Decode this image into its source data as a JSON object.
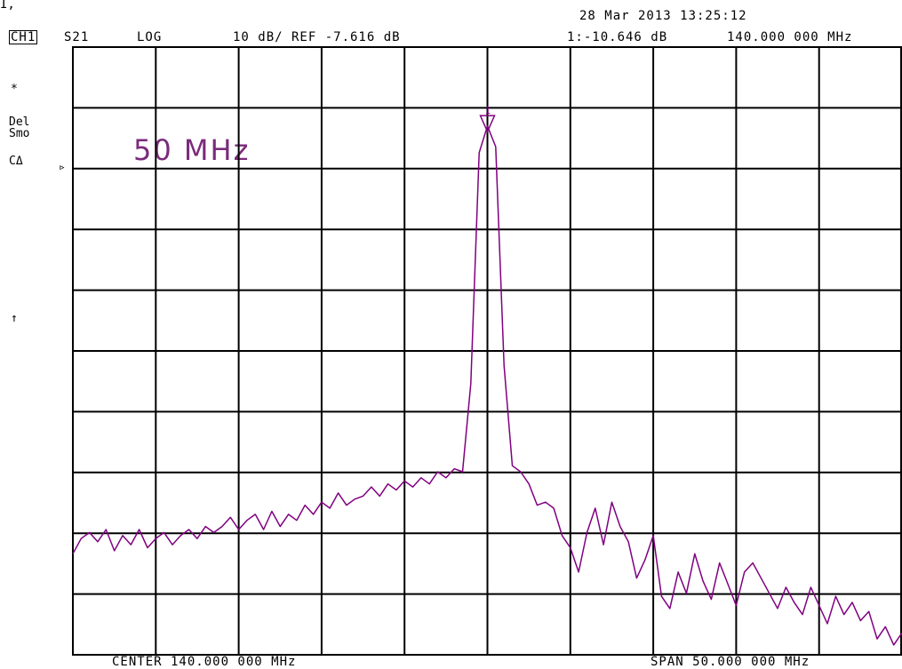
{
  "corner_mark": "I, ",
  "header": {
    "datetime": "28 Mar 2013  13:25:12",
    "channel": "CH1",
    "param": "S21",
    "format": "LOG",
    "scale_ref": "10 dB/ REF -7.616 dB",
    "marker_readout": "1:-10.646 dB",
    "marker_freq": "140.000 000 MHz"
  },
  "side_labels": {
    "star": "*",
    "del": "Del",
    "smo": "Smo",
    "ca": "CΔ",
    "arrow": "↑",
    "ref_marker": "▹"
  },
  "annotation": "50 MHz",
  "footer": {
    "center": "CENTER 140.000 000 MHz",
    "span": "SPAN  50.000 000 MHz"
  },
  "chart_data": {
    "type": "line",
    "x_unit": "MHz",
    "y_unit": "dB",
    "center_mhz": 140.0,
    "span_mhz": 50.0,
    "xlim": [
      115.0,
      165.0
    ],
    "ref_db": -7.616,
    "scale_db_per_div": 10,
    "divisions_x": 10,
    "divisions_y": 10,
    "ylim": [
      -97.616,
      2.384
    ],
    "grid": true,
    "trace_color": "#800080",
    "marker": {
      "label": "1",
      "x": 140.0,
      "y": -10.646
    },
    "series": [
      {
        "x": [
          115.0,
          115.5,
          116.0,
          116.5,
          117.0,
          117.5,
          118.0,
          118.5,
          119.0,
          119.5,
          120.0,
          120.5,
          121.0,
          121.5,
          122.0,
          122.5,
          123.0,
          123.5,
          124.0,
          124.5,
          125.0,
          125.5,
          126.0,
          126.5,
          127.0,
          127.5,
          128.0,
          128.5,
          129.0,
          129.5,
          130.0,
          130.5,
          131.0,
          131.5,
          132.0,
          132.5,
          133.0,
          133.5,
          134.0,
          134.5,
          135.0,
          135.5,
          136.0,
          136.5,
          137.0,
          137.5,
          138.0,
          138.5,
          139.0,
          139.5,
          140.0,
          140.5,
          141.0,
          141.5,
          142.0,
          142.5,
          143.0,
          143.5,
          144.0,
          144.5,
          145.0,
          145.5,
          146.0,
          146.5,
          147.0,
          147.5,
          148.0,
          148.5,
          149.0,
          149.5,
          150.0,
          150.5,
          151.0,
          151.5,
          152.0,
          152.5,
          153.0,
          153.5,
          154.0,
          154.5,
          155.0,
          155.5,
          156.0,
          156.5,
          157.0,
          157.5,
          158.0,
          158.5,
          159.0,
          159.5,
          160.0,
          160.5,
          161.0,
          161.5,
          162.0,
          162.5,
          163.0,
          163.5,
          164.0,
          164.5,
          165.0
        ],
        "y": [
          -81.0,
          -78.5,
          -77.5,
          -79.0,
          -77.0,
          -80.5,
          -78.0,
          -79.5,
          -77.0,
          -80.0,
          -78.5,
          -77.5,
          -79.5,
          -78.0,
          -77.0,
          -78.5,
          -76.5,
          -77.5,
          -76.5,
          -75.0,
          -77.0,
          -75.5,
          -74.5,
          -77.0,
          -74.0,
          -76.5,
          -74.5,
          -75.5,
          -73.0,
          -74.5,
          -72.5,
          -73.5,
          -71.0,
          -73.0,
          -72.0,
          -71.5,
          -70.0,
          -71.5,
          -69.5,
          -70.5,
          -69.0,
          -70.0,
          -68.5,
          -69.5,
          -67.5,
          -68.5,
          -67.0,
          -67.5,
          -53.0,
          -15.0,
          -10.6,
          -14.0,
          -50.0,
          -66.5,
          -67.5,
          -69.5,
          -73.0,
          -72.5,
          -73.5,
          -78.0,
          -80.0,
          -84.0,
          -77.5,
          -73.5,
          -79.5,
          -72.5,
          -76.5,
          -79.0,
          -85.0,
          -82.0,
          -78.0,
          -88.0,
          -90.0,
          -84.0,
          -87.5,
          -81.0,
          -85.5,
          -88.5,
          -82.5,
          -86.0,
          -89.5,
          -84.0,
          -82.5,
          -85.0,
          -87.5,
          -90.0,
          -86.5,
          -89.0,
          -91.0,
          -86.5,
          -89.5,
          -92.5,
          -88.0,
          -91.0,
          -89.0,
          -92.0,
          -90.5,
          -95.0,
          -93.0,
          -96.0,
          -94.0
        ]
      }
    ]
  }
}
